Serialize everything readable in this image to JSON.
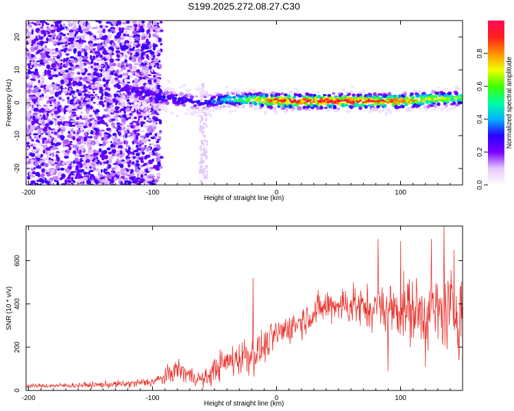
{
  "title": "S199.2025.272.08.27.C30",
  "chart_data": [
    {
      "type": "heatmap",
      "title": "S199.2025.272.08.27.C30",
      "xlabel": "Height of straight line (km)",
      "ylabel": "Frequency (Hz)",
      "xlim": [
        -202,
        150
      ],
      "ylim": [
        -25,
        25
      ],
      "xticks": [
        -200,
        -100,
        0,
        100
      ],
      "yticks": [
        -20,
        -10,
        0,
        10,
        20
      ],
      "colorbar": {
        "label": "Normalized spectral amplitude",
        "range": [
          0,
          1
        ],
        "ticks": [
          0.0,
          0.2,
          0.4,
          0.6,
          0.8
        ],
        "tick_labels": [
          "0.0",
          "0.2",
          "0.4",
          "0.6",
          "0.8"
        ],
        "colors": [
          "#ffffff",
          "#e6c9ff",
          "#7a00ff",
          "#2a00ff",
          "#00b4ff",
          "#00ffa0",
          "#40ff00",
          "#f0ff00",
          "#ff9000",
          "#ff1e1e",
          "#ff0a5a"
        ]
      },
      "ridge": {
        "x": [
          -120,
          -100,
          -80,
          -60,
          -40,
          -20,
          0,
          20,
          40,
          60,
          80,
          100,
          120,
          150
        ],
        "frequency_hz": [
          4,
          2,
          1,
          0,
          1,
          1,
          0.5,
          0.5,
          0.5,
          0.5,
          0.5,
          0.5,
          1,
          1.5
        ],
        "peak_amplitude": [
          0.25,
          0.3,
          0.3,
          0.3,
          0.45,
          0.65,
          0.85,
          0.9,
          0.9,
          0.9,
          0.85,
          0.8,
          0.7,
          0.6
        ]
      },
      "scatter_band": {
        "x_range": [
          -202,
          -93
        ],
        "frequency_range": [
          -25,
          25
        ],
        "typical_amplitude": 0.25
      }
    },
    {
      "type": "line",
      "xlabel": "Height of straight line (km)",
      "ylabel": "SNR (10 * v/v)",
      "xlim": [
        -202,
        150
      ],
      "ylim": [
        0,
        760
      ],
      "xticks": [
        -200,
        -100,
        0,
        100
      ],
      "yticks": [
        0,
        200,
        400,
        600
      ],
      "series": [
        {
          "name": "SNR",
          "color": "#e8302a",
          "envelope_x": [
            -202,
            -180,
            -150,
            -120,
            -100,
            -90,
            -80,
            -70,
            -60,
            -55,
            -50,
            -40,
            -30,
            -25,
            -20,
            -15,
            -10,
            0,
            10,
            20,
            30,
            40,
            50,
            60,
            70,
            80,
            90,
            100,
            110,
            120,
            130,
            140,
            150
          ],
          "mean": [
            20,
            22,
            25,
            30,
            40,
            60,
            100,
            70,
            50,
            60,
            100,
            130,
            150,
            170,
            160,
            180,
            200,
            260,
            290,
            320,
            360,
            390,
            400,
            390,
            380,
            380,
            380,
            380,
            370,
            360,
            360,
            370,
            400
          ],
          "spread": [
            10,
            12,
            15,
            20,
            25,
            40,
            60,
            50,
            40,
            50,
            70,
            80,
            90,
            110,
            100,
            90,
            80,
            80,
            80,
            80,
            80,
            90,
            90,
            100,
            110,
            120,
            140,
            160,
            170,
            180,
            190,
            200,
            200
          ],
          "spikes": [
            {
              "x": -19,
              "y": 520
            },
            {
              "x": 62,
              "y": 500
            },
            {
              "x": 82,
              "y": 700
            },
            {
              "x": 100,
              "y": 690
            },
            {
              "x": 125,
              "y": 700
            },
            {
              "x": 135,
              "y": 780
            },
            {
              "x": 143,
              "y": 650
            },
            {
              "x": 90,
              "y": 90
            },
            {
              "x": 120,
              "y": 110
            },
            {
              "x": 147,
              "y": 140
            }
          ]
        }
      ]
    }
  ]
}
